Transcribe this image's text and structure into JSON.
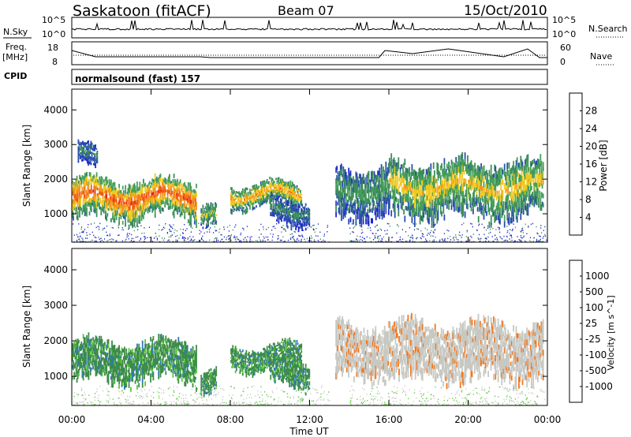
{
  "header": {
    "station": "Saskatoon (fitACF)",
    "beam": "Beam 07",
    "date": "15/Oct/2010"
  },
  "noise_panel": {
    "left_label": "N.Sky",
    "right_label": "N.Search",
    "left_ticks": [
      "10^5",
      "10^0"
    ],
    "right_ticks": [
      "10^5",
      "10^0"
    ]
  },
  "freq_panel": {
    "left_label_line1": "Freq.",
    "left_label_line2": "[MHz]",
    "right_label": "Nave",
    "left_ticks": [
      "18",
      "8"
    ],
    "right_ticks": [
      "60",
      "0"
    ]
  },
  "cpid": {
    "label": "CPID",
    "value": "normalsound (fast) 157"
  },
  "x_axis": {
    "label": "Time UT",
    "ticks": [
      "00:00",
      "04:00",
      "08:00",
      "12:00",
      "16:00",
      "20:00",
      "00:00"
    ]
  },
  "colors": {
    "power_scale": [
      "#1e28c8",
      "#2850aa",
      "#3c8c5a",
      "#46a05a",
      "#f0c81e",
      "#f0961e",
      "#f05a14",
      "#e61e14"
    ],
    "velocity_scale": [
      "#1e3cb4",
      "#2d78b4",
      "#3c8c46",
      "#5ac83c",
      "#c8c8c3",
      "#f09628",
      "#f0781e",
      "#eb3c14",
      "#e61414"
    ]
  },
  "chart_data": [
    {
      "type": "heatmap",
      "quantity": "power",
      "ylabel": "Slant Range [km]",
      "yticks": [
        1000,
        2000,
        3000,
        4000
      ],
      "ylim": [
        180,
        4600
      ],
      "xlim_hours": [
        0,
        24
      ],
      "colorbar_label": "Power [dB]",
      "colorbar_ticks": [
        "4",
        "8",
        "12",
        "16",
        "20",
        "24",
        "28"
      ],
      "colorbar_range": [
        0,
        32
      ],
      "echo_regions": [
        {
          "t0": 0.0,
          "t1": 6.3,
          "r0": 850,
          "r1": 2200,
          "level": 22
        },
        {
          "t0": 0.3,
          "t1": 1.3,
          "r0": 2300,
          "r1": 3100,
          "level": 8
        },
        {
          "t0": 6.5,
          "t1": 7.3,
          "r0": 500,
          "r1": 1250,
          "level": 14
        },
        {
          "t0": 8.0,
          "t1": 11.6,
          "r0": 1200,
          "r1": 2000,
          "level": 18
        },
        {
          "t0": 10.0,
          "t1": 12.0,
          "r0": 700,
          "r1": 1600,
          "level": 8
        },
        {
          "t0": 13.3,
          "t1": 16.0,
          "r0": 900,
          "r1": 2600,
          "level": 10
        },
        {
          "t0": 16.0,
          "t1": 23.8,
          "r0": 900,
          "r1": 2800,
          "level": 16
        }
      ],
      "ground_scatter_band_km": [
        200,
        750
      ]
    },
    {
      "type": "heatmap",
      "quantity": "velocity",
      "ylabel": "Slant Range [km]",
      "yticks": [
        1000,
        2000,
        3000,
        4000
      ],
      "ylim": [
        180,
        4600
      ],
      "xlim_hours": [
        0,
        24
      ],
      "colorbar_label": "Velocity [m s^-1]",
      "colorbar_ticks": [
        "1000",
        "500",
        "100",
        "25",
        "-25",
        "-100",
        "-500",
        "-1000"
      ],
      "echo_regions": [
        {
          "t0": 0.0,
          "t1": 6.3,
          "r0": 850,
          "r1": 2200,
          "velocity": 100
        },
        {
          "t0": 6.5,
          "t1": 7.3,
          "r0": 500,
          "r1": 1250,
          "velocity": 100
        },
        {
          "t0": 8.0,
          "t1": 11.6,
          "r0": 1200,
          "r1": 2000,
          "velocity": 100
        },
        {
          "t0": 10.0,
          "t1": 12.0,
          "r0": 700,
          "r1": 1600,
          "velocity": 100
        },
        {
          "t0": 13.3,
          "t1": 23.8,
          "r0": 900,
          "r1": 2800,
          "velocity": 0
        }
      ],
      "ground_scatter_band_km": [
        200,
        750
      ]
    }
  ]
}
